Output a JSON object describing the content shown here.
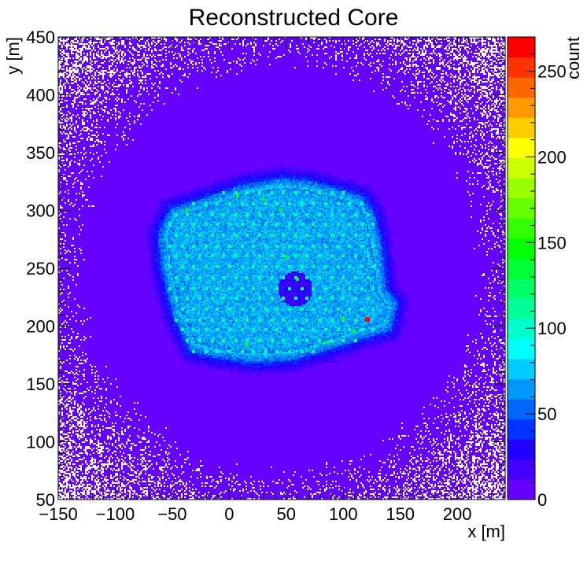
{
  "chart_data": {
    "type": "heatmap",
    "title": "Reconstructed Core",
    "xlabel": "x [m]",
    "ylabel": "y [m]",
    "zlabel": "count",
    "xlim": [
      -150,
      242
    ],
    "ylim": [
      50,
      450
    ],
    "zlim": [
      0,
      270
    ],
    "x_ticks": [
      -150,
      -100,
      -50,
      0,
      50,
      100,
      150,
      200
    ],
    "y_ticks": [
      50,
      100,
      150,
      200,
      250,
      300,
      350,
      400,
      450
    ],
    "z_ticks": [
      0,
      50,
      100,
      150,
      200,
      250
    ],
    "palette": [
      "#6600ff",
      "#4400ff",
      "#2200ff",
      "#0033ff",
      "#0066ff",
      "#0099ff",
      "#00ccff",
      "#00ffff",
      "#00ffcc",
      "#00ff99",
      "#00ff66",
      "#00ff33",
      "#00ff00",
      "#33ff00",
      "#66ff00",
      "#99ff00",
      "#ccff00",
      "#ffff00",
      "#ffcc00",
      "#ff9900",
      "#ff6600",
      "#ff3300",
      "#ff0000"
    ],
    "background_level": 3,
    "footprint_polygon": [
      [
        -62,
        282
      ],
      [
        -52,
        302
      ],
      [
        -25,
        310
      ],
      [
        10,
        322
      ],
      [
        45,
        328
      ],
      [
        70,
        326
      ],
      [
        100,
        318
      ],
      [
        118,
        312
      ],
      [
        128,
        296
      ],
      [
        132,
        280
      ],
      [
        135,
        260
      ],
      [
        138,
        232
      ],
      [
        148,
        220
      ],
      [
        142,
        196
      ],
      [
        120,
        190
      ],
      [
        90,
        180
      ],
      [
        55,
        170
      ],
      [
        20,
        168
      ],
      [
        -10,
        172
      ],
      [
        -35,
        178
      ],
      [
        -50,
        210
      ],
      [
        -60,
        250
      ]
    ],
    "footprint_level": 85,
    "hole": {
      "center": [
        58,
        232
      ],
      "radius": 15
    },
    "station_grid": {
      "x_range": [
        -52,
        130
      ],
      "y_range": [
        178,
        318
      ],
      "spacing": 10.5,
      "level": 115
    },
    "hotspot": {
      "x": 121,
      "y": 207,
      "value": 268
    },
    "hot_stations": [
      [
        15,
        184
      ],
      [
        50,
        260
      ],
      [
        60,
        240
      ],
      [
        84,
        186
      ],
      [
        100,
        206
      ],
      [
        110,
        195
      ],
      [
        -37,
        300
      ],
      [
        8,
        312
      ],
      [
        30,
        310
      ],
      [
        45,
        300
      ]
    ]
  }
}
